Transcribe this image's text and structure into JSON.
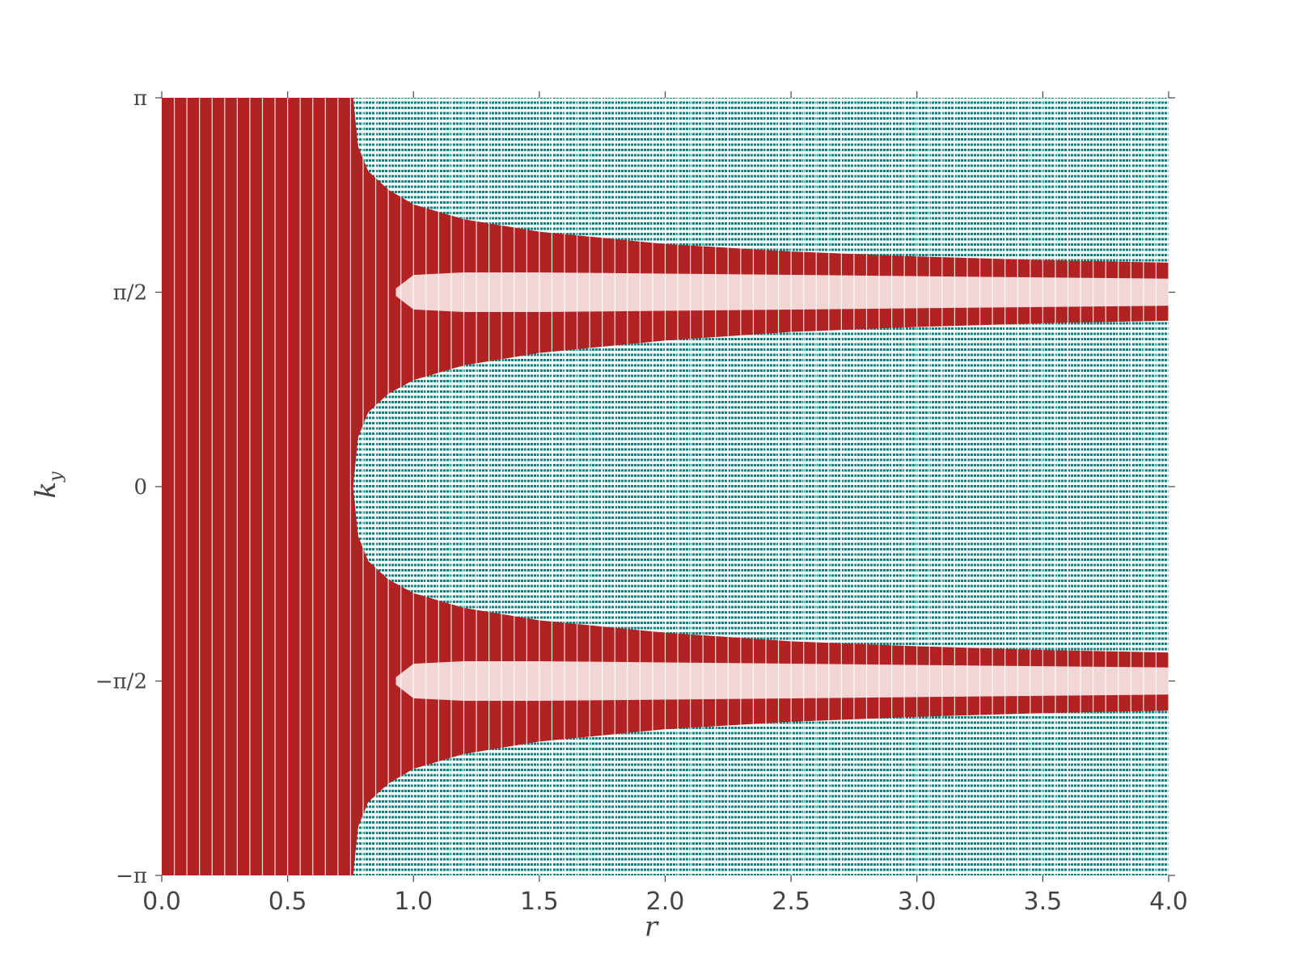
{
  "chart_data": {
    "type": "scatter",
    "title": "",
    "xlabel": "r",
    "ylabel": {
      "base": "k",
      "subscript": "y"
    },
    "xlim": [
      0.0,
      4.0
    ],
    "ylim": [
      -3.14159,
      3.14159
    ],
    "x_ticks": [
      {
        "value": 0.0,
        "label": "0.0"
      },
      {
        "value": 0.5,
        "label": "0.5"
      },
      {
        "value": 1.0,
        "label": "1.0"
      },
      {
        "value": 1.5,
        "label": "1.5"
      },
      {
        "value": 2.0,
        "label": "2.0"
      },
      {
        "value": 2.5,
        "label": "2.5"
      },
      {
        "value": 3.0,
        "label": "3.0"
      },
      {
        "value": 3.5,
        "label": "3.5"
      },
      {
        "value": 4.0,
        "label": "4.0"
      }
    ],
    "y_ticks": [
      {
        "value": 3.14159,
        "label": "π"
      },
      {
        "value": 1.5708,
        "label": "π/2"
      },
      {
        "value": 0.0,
        "label": "0"
      },
      {
        "value": -1.5708,
        "label": "−π/2"
      },
      {
        "value": -3.14159,
        "label": "−π"
      }
    ],
    "grid": false,
    "series": [
      {
        "color": "#b22222",
        "region": "outer band",
        "boundary": [
          {
            "r": 0.76,
            "ky": 0.0
          },
          {
            "r": 0.78,
            "ky": 0.4
          },
          {
            "r": 0.82,
            "ky": 0.6
          },
          {
            "r": 0.9,
            "ky": 0.75
          },
          {
            "r": 1.0,
            "ky": 0.86
          },
          {
            "r": 1.2,
            "ky": 0.98
          },
          {
            "r": 1.5,
            "ky": 1.08
          },
          {
            "r": 2.0,
            "ky": 1.18
          },
          {
            "r": 2.5,
            "ky": 1.25
          },
          {
            "r": 3.0,
            "ky": 1.29
          },
          {
            "r": 3.5,
            "ky": 1.32
          },
          {
            "r": 4.0,
            "ky": 1.34
          },
          {
            "r": 4.0,
            "ky": 1.81
          },
          {
            "r": 3.5,
            "ky": 1.83
          },
          {
            "r": 3.0,
            "ky": 1.86
          },
          {
            "r": 2.5,
            "ky": 1.9
          },
          {
            "r": 2.0,
            "ky": 1.96
          },
          {
            "r": 1.5,
            "ky": 2.06
          },
          {
            "r": 1.2,
            "ky": 2.16
          },
          {
            "r": 1.0,
            "ky": 2.28
          },
          {
            "r": 0.9,
            "ky": 2.4
          },
          {
            "r": 0.82,
            "ky": 2.55
          },
          {
            "r": 0.78,
            "ky": 2.75
          },
          {
            "r": 0.76,
            "ky": 3.14159
          }
        ]
      },
      {
        "color": "#f2d6d6",
        "region": "inner band",
        "center": 1.5708,
        "halfwidth": [
          {
            "r": 0.93,
            "ky": 0.03
          },
          {
            "r": 1.0,
            "ky": 0.14
          },
          {
            "r": 1.2,
            "ky": 0.16
          },
          {
            "r": 1.5,
            "ky": 0.16
          },
          {
            "r": 2.0,
            "ky": 0.15
          },
          {
            "r": 3.0,
            "ky": 0.13
          },
          {
            "r": 4.0,
            "ky": 0.11
          }
        ]
      },
      {
        "color": "#0f7f7f",
        "region": "background"
      }
    ]
  }
}
